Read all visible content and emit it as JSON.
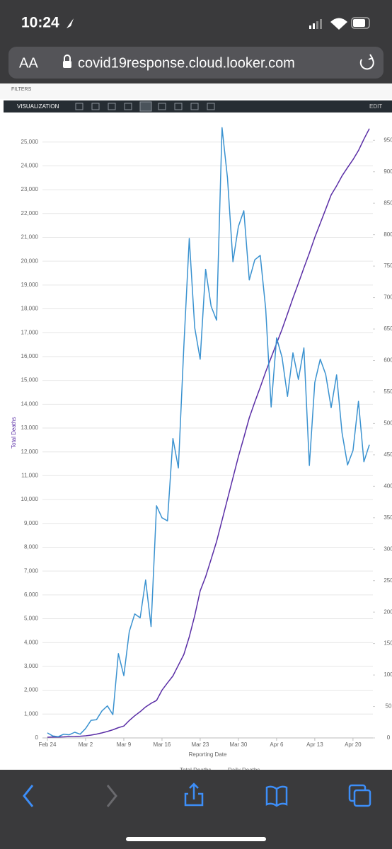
{
  "status": {
    "time": "10:24"
  },
  "browser": {
    "font_button": "AA",
    "url": "covid19response.cloud.looker.com"
  },
  "toolbar": {
    "filters": "FILTERS",
    "title": "VISUALIZATION",
    "edit": "EDIT"
  },
  "chart_data": {
    "type": "line",
    "y_label": "Total Deaths",
    "x_label": "Reporting Date",
    "categories": [
      "Feb 24",
      null,
      null,
      null,
      null,
      null,
      null,
      "Mar 2",
      null,
      null,
      null,
      null,
      null,
      null,
      "Mar 9",
      null,
      null,
      null,
      null,
      null,
      null,
      "Mar 16",
      null,
      null,
      null,
      null,
      null,
      null,
      "Mar 23",
      null,
      null,
      null,
      null,
      null,
      null,
      "Mar 30",
      null,
      null,
      null,
      null,
      null,
      null,
      "Apr 6",
      null,
      null,
      null,
      null,
      null,
      null,
      "Apr 13",
      null,
      null,
      null,
      null,
      null,
      null,
      "Apr 20",
      null,
      null,
      null
    ],
    "series": [
      {
        "name": "Total Deaths",
        "color": "#5a2ea6",
        "axis": "y",
        "values": [
          30,
          35,
          40,
          45,
          55,
          60,
          70,
          90,
          120,
          160,
          210,
          270,
          340,
          430,
          500,
          730,
          930,
          1100,
          1300,
          1450,
          1570,
          2000,
          2310,
          2600,
          3050,
          3500,
          4240,
          5130,
          6170,
          6760,
          7500,
          8240,
          9130,
          10020,
          10910,
          11800,
          12600,
          13430,
          14090,
          14710,
          15360,
          15960,
          16550,
          17140,
          17790,
          18450,
          19070,
          19720,
          20340,
          21000,
          21590,
          22180,
          22780,
          23160,
          23580,
          23930,
          24260,
          24640,
          25120,
          25560
        ]
      },
      {
        "name": "Daily Deaths",
        "color": "#3a92d0",
        "axis": "y2",
        "values": [
          8,
          3,
          2,
          6,
          5,
          9,
          6,
          15,
          28,
          29,
          43,
          51,
          37,
          134,
          99,
          169,
          197,
          191,
          251,
          177,
          369,
          350,
          345,
          476,
          429,
          622,
          794,
          652,
          602,
          745,
          686,
          664,
          970,
          890,
          757,
          813,
          838,
          728,
          760,
          767,
          682,
          526,
          636,
          605,
          543,
          612,
          570,
          620,
          433,
          565,
          602,
          578,
          525,
          577,
          485,
          434,
          457,
          535,
          439,
          466
        ]
      }
    ],
    "ylim": [
      0,
      25600
    ],
    "yticks": [
      0,
      {
        "value": 1000,
        "label": "1,000"
      },
      {
        "value": 2000,
        "label": "2,000"
      },
      {
        "value": 3000,
        "label": "3,000"
      },
      {
        "value": 4000,
        "label": "4,000"
      },
      {
        "value": 5000,
        "label": "5,000"
      },
      {
        "value": 6000,
        "label": "6,000"
      },
      {
        "value": 7000,
        "label": "7,000"
      },
      {
        "value": 8000,
        "label": "8,000"
      },
      {
        "value": 9000,
        "label": "9,000"
      },
      {
        "value": 10000,
        "label": "10,000"
      },
      {
        "value": 11000,
        "label": "11,000"
      },
      {
        "value": 12000,
        "label": "12,000"
      },
      {
        "value": 13000,
        "label": "13,000"
      },
      {
        "value": 14000,
        "label": "14,000"
      },
      {
        "value": 15000,
        "label": "15,000"
      },
      {
        "value": 16000,
        "label": "16,000"
      },
      {
        "value": 17000,
        "label": "17,000"
      },
      {
        "value": 18000,
        "label": "18,000"
      },
      {
        "value": 19000,
        "label": "19,000"
      },
      {
        "value": 20000,
        "label": "20,000"
      },
      {
        "value": 21000,
        "label": "21,000"
      },
      {
        "value": 22000,
        "label": "22,000"
      },
      {
        "value": 23000,
        "label": "23,000"
      },
      {
        "value": 24000,
        "label": "24,000"
      },
      {
        "value": 25000,
        "label": "25,000"
      }
    ],
    "y2lim": [
      0,
      970
    ],
    "y2ticks": [
      0,
      50,
      100,
      150,
      200,
      250,
      300,
      350,
      400,
      450,
      500,
      550,
      600,
      650,
      700,
      750,
      800,
      850,
      900,
      950
    ],
    "grid": true,
    "legend": "bottom"
  }
}
